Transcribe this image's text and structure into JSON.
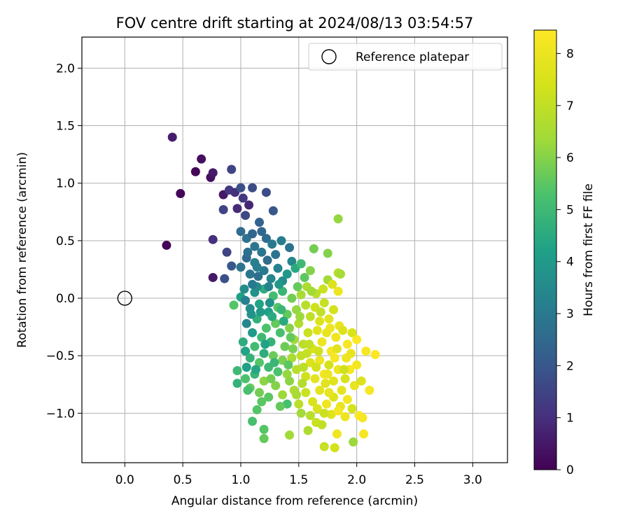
{
  "chart_data": {
    "type": "scatter",
    "title": "FOV centre drift starting at 2024/08/13 03:54:57",
    "xlabel": "Angular distance from reference (arcmin)",
    "ylabel": "Rotation from reference (arcmin)",
    "xlim": [
      -0.37,
      3.3
    ],
    "ylim": [
      -1.43,
      2.27
    ],
    "xticks": [
      {
        "value": 0.0,
        "label": "0.0"
      },
      {
        "value": 0.5,
        "label": "0.5"
      },
      {
        "value": 1.0,
        "label": "1.0"
      },
      {
        "value": 1.5,
        "label": "1.5"
      },
      {
        "value": 2.0,
        "label": "2.0"
      },
      {
        "value": 2.5,
        "label": "2.5"
      },
      {
        "value": 3.0,
        "label": "3.0"
      }
    ],
    "yticks": [
      {
        "value": -1.0,
        "label": "−1.0"
      },
      {
        "value": -0.5,
        "label": "−0.5"
      },
      {
        "value": 0.0,
        "label": "0.0"
      },
      {
        "value": 0.5,
        "label": "0.5"
      },
      {
        "value": 1.0,
        "label": "1.0"
      },
      {
        "value": 1.5,
        "label": "1.5"
      },
      {
        "value": 2.0,
        "label": "2.0"
      }
    ],
    "grid": true,
    "legend": {
      "position": "top-right",
      "entries": [
        {
          "label": "Reference platepar",
          "marker": "open-circle",
          "color": "#000000"
        }
      ]
    },
    "reference_point": {
      "x": 0.0,
      "y": 0.0
    },
    "colorbar": {
      "label": "Hours from first FF file",
      "colormap": "viridis",
      "range": [
        0,
        8.45
      ],
      "ticks": [
        {
          "value": 0,
          "label": "0"
        },
        {
          "value": 1,
          "label": "1"
        },
        {
          "value": 2,
          "label": "2"
        },
        {
          "value": 3,
          "label": "3"
        },
        {
          "value": 4,
          "label": "4"
        },
        {
          "value": 5,
          "label": "5"
        },
        {
          "value": 6,
          "label": "6"
        },
        {
          "value": 7,
          "label": "7"
        },
        {
          "value": 8,
          "label": "8"
        }
      ]
    },
    "points": [
      {
        "x": 0.41,
        "y": 1.4,
        "h": 0.6
      },
      {
        "x": 0.36,
        "y": 0.46,
        "h": 0.1
      },
      {
        "x": 0.48,
        "y": 0.91,
        "h": 0.1
      },
      {
        "x": 0.61,
        "y": 1.1,
        "h": 0.1
      },
      {
        "x": 0.66,
        "y": 1.21,
        "h": 0.3
      },
      {
        "x": 0.74,
        "y": 1.05,
        "h": 0.3
      },
      {
        "x": 0.76,
        "y": 1.09,
        "h": 0.5
      },
      {
        "x": 0.76,
        "y": 0.51,
        "h": 1.0
      },
      {
        "x": 0.76,
        "y": 0.18,
        "h": 0.5
      },
      {
        "x": 0.85,
        "y": 0.9,
        "h": 0.5
      },
      {
        "x": 0.85,
        "y": 0.77,
        "h": 1.5
      },
      {
        "x": 0.88,
        "y": 0.4,
        "h": 1.5
      },
      {
        "x": 0.86,
        "y": 0.17,
        "h": 1.8
      },
      {
        "x": 0.9,
        "y": 0.94,
        "h": 1.2
      },
      {
        "x": 0.92,
        "y": 1.12,
        "h": 1.5
      },
      {
        "x": 0.95,
        "y": 0.92,
        "h": 1.0
      },
      {
        "x": 0.92,
        "y": 0.28,
        "h": 2.0
      },
      {
        "x": 0.97,
        "y": 0.78,
        "h": 0.9
      },
      {
        "x": 1.0,
        "y": 0.96,
        "h": 1.8
      },
      {
        "x": 1.02,
        "y": 0.87,
        "h": 1.2
      },
      {
        "x": 1.04,
        "y": 0.72,
        "h": 1.6
      },
      {
        "x": 1.07,
        "y": 0.81,
        "h": 0.8
      },
      {
        "x": 1.1,
        "y": 0.96,
        "h": 1.7
      },
      {
        "x": 1.22,
        "y": 0.92,
        "h": 1.7
      },
      {
        "x": 1.28,
        "y": 0.76,
        "h": 2.0
      },
      {
        "x": 1.16,
        "y": 0.66,
        "h": 2.3
      },
      {
        "x": 1.0,
        "y": 0.58,
        "h": 2.6
      },
      {
        "x": 1.05,
        "y": 0.52,
        "h": 2.8
      },
      {
        "x": 1.1,
        "y": 0.56,
        "h": 2.4
      },
      {
        "x": 1.12,
        "y": 0.45,
        "h": 2.9
      },
      {
        "x": 1.18,
        "y": 0.58,
        "h": 2.4
      },
      {
        "x": 1.22,
        "y": 0.52,
        "h": 2.6
      },
      {
        "x": 1.27,
        "y": 0.47,
        "h": 3.0
      },
      {
        "x": 1.3,
        "y": 0.38,
        "h": 2.8
      },
      {
        "x": 1.35,
        "y": 0.5,
        "h": 3.1
      },
      {
        "x": 1.42,
        "y": 0.44,
        "h": 2.8
      },
      {
        "x": 1.44,
        "y": 0.32,
        "h": 3.4
      },
      {
        "x": 1.0,
        "y": 0.27,
        "h": 2.8
      },
      {
        "x": 1.05,
        "y": 0.35,
        "h": 2.5
      },
      {
        "x": 1.08,
        "y": 0.21,
        "h": 2.9
      },
      {
        "x": 1.12,
        "y": 0.31,
        "h": 3.2
      },
      {
        "x": 1.15,
        "y": 0.19,
        "h": 2.7
      },
      {
        "x": 1.2,
        "y": 0.24,
        "h": 3.0
      },
      {
        "x": 1.23,
        "y": 0.33,
        "h": 2.6
      },
      {
        "x": 1.26,
        "y": 0.17,
        "h": 3.4
      },
      {
        "x": 1.32,
        "y": 0.26,
        "h": 3.3
      },
      {
        "x": 1.36,
        "y": 0.15,
        "h": 3.6
      },
      {
        "x": 1.4,
        "y": 0.21,
        "h": 3.9
      },
      {
        "x": 1.47,
        "y": 0.26,
        "h": 4.5
      },
      {
        "x": 1.52,
        "y": 0.3,
        "h": 5.0
      },
      {
        "x": 1.55,
        "y": 0.18,
        "h": 5.5
      },
      {
        "x": 1.6,
        "y": 0.24,
        "h": 6.0
      },
      {
        "x": 1.63,
        "y": 0.43,
        "h": 5.8
      },
      {
        "x": 1.75,
        "y": 0.39,
        "h": 6.0
      },
      {
        "x": 1.75,
        "y": 0.16,
        "h": 6.4
      },
      {
        "x": 1.84,
        "y": 0.69,
        "h": 6.2
      },
      {
        "x": 1.84,
        "y": 0.22,
        "h": 6.8
      },
      {
        "x": 1.86,
        "y": 0.21,
        "h": 6.5
      },
      {
        "x": 1.84,
        "y": 0.06,
        "h": 8.0
      },
      {
        "x": 1.79,
        "y": 0.12,
        "h": 7.6
      },
      {
        "x": 1.71,
        "y": 0.08,
        "h": 7.2
      },
      {
        "x": 1.65,
        "y": 0.04,
        "h": 6.9
      },
      {
        "x": 1.57,
        "y": 0.1,
        "h": 6.6
      },
      {
        "x": 0.94,
        "y": -0.06,
        "h": 5.4
      },
      {
        "x": 1.0,
        "y": 0.01,
        "h": 4.2
      },
      {
        "x": 1.04,
        "y": -0.02,
        "h": 3.2
      },
      {
        "x": 1.08,
        "y": -0.09,
        "h": 3.6
      },
      {
        "x": 1.12,
        "y": 0.05,
        "h": 3.8
      },
      {
        "x": 1.16,
        "y": -0.05,
        "h": 4.3
      },
      {
        "x": 1.2,
        "y": 0.08,
        "h": 4.6
      },
      {
        "x": 1.24,
        "y": -0.12,
        "h": 4.2
      },
      {
        "x": 1.28,
        "y": 0.02,
        "h": 5.1
      },
      {
        "x": 1.32,
        "y": -0.08,
        "h": 5.4
      },
      {
        "x": 1.36,
        "y": 0.06,
        "h": 4.9
      },
      {
        "x": 1.4,
        "y": -0.14,
        "h": 5.6
      },
      {
        "x": 1.44,
        "y": 0.0,
        "h": 5.8
      },
      {
        "x": 1.48,
        "y": -0.1,
        "h": 6.2
      },
      {
        "x": 1.52,
        "y": 0.03,
        "h": 6.5
      },
      {
        "x": 1.56,
        "y": -0.06,
        "h": 6.8
      },
      {
        "x": 1.6,
        "y": -0.16,
        "h": 7.0
      },
      {
        "x": 1.64,
        "y": -0.08,
        "h": 7.3
      },
      {
        "x": 1.68,
        "y": -0.2,
        "h": 7.6
      },
      {
        "x": 1.72,
        "y": -0.04,
        "h": 7.1
      },
      {
        "x": 1.76,
        "y": -0.18,
        "h": 7.8
      },
      {
        "x": 1.8,
        "y": -0.1,
        "h": 7.4
      },
      {
        "x": 1.85,
        "y": -0.24,
        "h": 7.9
      },
      {
        "x": 1.05,
        "y": -0.22,
        "h": 3.4
      },
      {
        "x": 1.1,
        "y": -0.3,
        "h": 4.0
      },
      {
        "x": 1.14,
        "y": -0.18,
        "h": 4.7
      },
      {
        "x": 1.18,
        "y": -0.34,
        "h": 5.0
      },
      {
        "x": 1.22,
        "y": -0.26,
        "h": 5.3
      },
      {
        "x": 1.26,
        "y": -0.38,
        "h": 4.8
      },
      {
        "x": 1.3,
        "y": -0.22,
        "h": 5.6
      },
      {
        "x": 1.34,
        "y": -0.3,
        "h": 5.2
      },
      {
        "x": 1.38,
        "y": -0.42,
        "h": 5.7
      },
      {
        "x": 1.42,
        "y": -0.26,
        "h": 6.0
      },
      {
        "x": 1.46,
        "y": -0.36,
        "h": 6.4
      },
      {
        "x": 1.5,
        "y": -0.22,
        "h": 6.7
      },
      {
        "x": 1.54,
        "y": -0.4,
        "h": 6.9
      },
      {
        "x": 1.58,
        "y": -0.3,
        "h": 7.2
      },
      {
        "x": 1.62,
        "y": -0.44,
        "h": 7.5
      },
      {
        "x": 1.66,
        "y": -0.28,
        "h": 7.7
      },
      {
        "x": 1.7,
        "y": -0.38,
        "h": 8.0
      },
      {
        "x": 1.74,
        "y": -0.3,
        "h": 7.9
      },
      {
        "x": 1.78,
        "y": -0.46,
        "h": 8.2
      },
      {
        "x": 1.82,
        "y": -0.34,
        "h": 8.1
      },
      {
        "x": 1.88,
        "y": -0.28,
        "h": 7.6
      },
      {
        "x": 1.92,
        "y": -0.4,
        "h": 8.3
      },
      {
        "x": 1.96,
        "y": -0.3,
        "h": 7.5
      },
      {
        "x": 2.0,
        "y": -0.36,
        "h": 8.4
      },
      {
        "x": 2.08,
        "y": -0.46,
        "h": 8.3
      },
      {
        "x": 2.16,
        "y": -0.49,
        "h": 8.4
      },
      {
        "x": 2.0,
        "y": -0.58,
        "h": 8.2
      },
      {
        "x": 1.04,
        "y": -0.46,
        "h": 4.3
      },
      {
        "x": 1.08,
        "y": -0.52,
        "h": 4.8
      },
      {
        "x": 1.12,
        "y": -0.42,
        "h": 5.1
      },
      {
        "x": 1.16,
        "y": -0.56,
        "h": 5.4
      },
      {
        "x": 1.2,
        "y": -0.48,
        "h": 4.6
      },
      {
        "x": 1.24,
        "y": -0.6,
        "h": 5.0
      },
      {
        "x": 1.28,
        "y": -0.5,
        "h": 5.7
      },
      {
        "x": 1.32,
        "y": -0.64,
        "h": 5.3
      },
      {
        "x": 1.36,
        "y": -0.54,
        "h": 5.9
      },
      {
        "x": 1.4,
        "y": -0.66,
        "h": 6.2
      },
      {
        "x": 1.44,
        "y": -0.52,
        "h": 6.5
      },
      {
        "x": 1.48,
        "y": -0.62,
        "h": 6.8
      },
      {
        "x": 1.52,
        "y": -0.5,
        "h": 7.0
      },
      {
        "x": 1.56,
        "y": -0.68,
        "h": 7.3
      },
      {
        "x": 1.6,
        "y": -0.56,
        "h": 7.6
      },
      {
        "x": 1.64,
        "y": -0.7,
        "h": 7.8
      },
      {
        "x": 1.68,
        "y": -0.54,
        "h": 8.0
      },
      {
        "x": 1.72,
        "y": -0.66,
        "h": 8.2
      },
      {
        "x": 1.76,
        "y": -0.58,
        "h": 7.4
      },
      {
        "x": 1.8,
        "y": -0.72,
        "h": 7.7
      },
      {
        "x": 1.84,
        "y": -0.62,
        "h": 8.1
      },
      {
        "x": 1.9,
        "y": -0.7,
        "h": 7.5
      },
      {
        "x": 1.94,
        "y": -0.62,
        "h": 8.3
      },
      {
        "x": 1.98,
        "y": -0.76,
        "h": 7.9
      },
      {
        "x": 2.04,
        "y": -0.72,
        "h": 7.6
      },
      {
        "x": 2.11,
        "y": -0.8,
        "h": 8.3
      },
      {
        "x": 0.97,
        "y": -0.63,
        "h": 5.0
      },
      {
        "x": 0.97,
        "y": -0.74,
        "h": 4.8
      },
      {
        "x": 1.04,
        "y": -0.7,
        "h": 5.3
      },
      {
        "x": 1.08,
        "y": -0.78,
        "h": 5.6
      },
      {
        "x": 1.12,
        "y": -0.66,
        "h": 4.9
      },
      {
        "x": 1.16,
        "y": -0.82,
        "h": 5.8
      },
      {
        "x": 1.2,
        "y": -0.72,
        "h": 6.1
      },
      {
        "x": 1.24,
        "y": -0.86,
        "h": 5.5
      },
      {
        "x": 1.3,
        "y": -0.76,
        "h": 6.0
      },
      {
        "x": 1.36,
        "y": -0.84,
        "h": 6.3
      },
      {
        "x": 1.4,
        "y": -0.92,
        "h": 5.2
      },
      {
        "x": 1.46,
        "y": -0.8,
        "h": 6.6
      },
      {
        "x": 1.5,
        "y": -0.92,
        "h": 6.9
      },
      {
        "x": 1.56,
        "y": -0.82,
        "h": 7.2
      },
      {
        "x": 1.62,
        "y": -0.9,
        "h": 7.5
      },
      {
        "x": 1.68,
        "y": -0.8,
        "h": 7.8
      },
      {
        "x": 1.74,
        "y": -0.92,
        "h": 8.1
      },
      {
        "x": 1.8,
        "y": -0.86,
        "h": 7.6
      },
      {
        "x": 1.86,
        "y": -0.94,
        "h": 7.9
      },
      {
        "x": 1.92,
        "y": -0.88,
        "h": 8.2
      },
      {
        "x": 1.96,
        "y": -0.96,
        "h": 7.4
      },
      {
        "x": 2.02,
        "y": -1.02,
        "h": 8.4
      },
      {
        "x": 2.05,
        "y": -1.04,
        "h": 8.3
      },
      {
        "x": 1.9,
        "y": -1.03,
        "h": 8.0
      },
      {
        "x": 1.78,
        "y": -1.01,
        "h": 7.7
      },
      {
        "x": 1.65,
        "y": -1.08,
        "h": 7.2
      },
      {
        "x": 1.7,
        "y": -1.1,
        "h": 7.0
      },
      {
        "x": 1.6,
        "y": -1.02,
        "h": 6.8
      },
      {
        "x": 1.52,
        "y": -1.0,
        "h": 6.4
      },
      {
        "x": 1.14,
        "y": -0.97,
        "h": 5.4
      },
      {
        "x": 1.1,
        "y": -1.07,
        "h": 5.2
      },
      {
        "x": 1.2,
        "y": -1.14,
        "h": 5.4
      },
      {
        "x": 1.2,
        "y": -1.22,
        "h": 5.6
      },
      {
        "x": 1.42,
        "y": -1.19,
        "h": 6.4
      },
      {
        "x": 1.58,
        "y": -1.15,
        "h": 6.6
      },
      {
        "x": 1.72,
        "y": -1.29,
        "h": 7.1
      },
      {
        "x": 1.81,
        "y": -1.3,
        "h": 7.4
      },
      {
        "x": 1.83,
        "y": -1.18,
        "h": 8.1
      },
      {
        "x": 1.97,
        "y": -1.25,
        "h": 6.3
      },
      {
        "x": 2.06,
        "y": -1.18,
        "h": 8.3
      },
      {
        "x": 1.02,
        "y": -0.38,
        "h": 4.6
      },
      {
        "x": 1.05,
        "y": -0.6,
        "h": 4.2
      },
      {
        "x": 1.09,
        "y": -0.14,
        "h": 3.8
      },
      {
        "x": 1.13,
        "y": -0.62,
        "h": 4.4
      },
      {
        "x": 1.17,
        "y": -0.12,
        "h": 4.0
      },
      {
        "x": 1.21,
        "y": -0.4,
        "h": 4.3
      },
      {
        "x": 1.25,
        "y": -0.04,
        "h": 3.7
      },
      {
        "x": 1.29,
        "y": -0.56,
        "h": 4.9
      },
      {
        "x": 1.33,
        "y": 0.12,
        "h": 3.9
      },
      {
        "x": 1.37,
        "y": -0.2,
        "h": 4.5
      },
      {
        "x": 1.41,
        "y": -0.58,
        "h": 5.5
      },
      {
        "x": 1.45,
        "y": -0.44,
        "h": 5.9
      },
      {
        "x": 1.49,
        "y": 0.1,
        "h": 5.6
      },
      {
        "x": 1.53,
        "y": -0.74,
        "h": 6.7
      },
      {
        "x": 1.57,
        "y": -0.48,
        "h": 7.1
      },
      {
        "x": 1.61,
        "y": 0.06,
        "h": 6.4
      },
      {
        "x": 1.65,
        "y": -0.6,
        "h": 7.4
      },
      {
        "x": 1.69,
        "y": -0.12,
        "h": 7.0
      },
      {
        "x": 1.73,
        "y": -0.74,
        "h": 7.7
      },
      {
        "x": 1.77,
        "y": -0.26,
        "h": 8.0
      },
      {
        "x": 1.81,
        "y": -0.52,
        "h": 8.3
      },
      {
        "x": 1.87,
        "y": -0.8,
        "h": 7.8
      },
      {
        "x": 1.91,
        "y": -0.52,
        "h": 8.0
      },
      {
        "x": 1.14,
        "y": 0.1,
        "h": 3.5
      },
      {
        "x": 1.18,
        "y": 0.4,
        "h": 2.9
      },
      {
        "x": 1.1,
        "y": 0.12,
        "h": 3.0
      },
      {
        "x": 1.24,
        "y": 0.1,
        "h": 3.3
      },
      {
        "x": 1.06,
        "y": 0.4,
        "h": 2.7
      },
      {
        "x": 1.14,
        "y": 0.27,
        "h": 3.1
      },
      {
        "x": 1.03,
        "y": 0.08,
        "h": 3.6
      },
      {
        "x": 1.27,
        "y": -0.16,
        "h": 4.5
      },
      {
        "x": 1.35,
        "y": -0.1,
        "h": 4.9
      },
      {
        "x": 1.43,
        "y": -0.34,
        "h": 5.6
      },
      {
        "x": 1.51,
        "y": -0.16,
        "h": 6.3
      },
      {
        "x": 1.59,
        "y": -0.4,
        "h": 7.0
      },
      {
        "x": 1.67,
        "y": -0.46,
        "h": 7.3
      },
      {
        "x": 1.75,
        "y": -0.66,
        "h": 8.0
      },
      {
        "x": 1.83,
        "y": -0.44,
        "h": 7.7
      },
      {
        "x": 1.89,
        "y": -0.62,
        "h": 7.3
      },
      {
        "x": 1.95,
        "y": -0.48,
        "h": 7.9
      },
      {
        "x": 1.06,
        "y": -0.8,
        "h": 5.2
      },
      {
        "x": 1.18,
        "y": -0.9,
        "h": 5.5
      },
      {
        "x": 1.26,
        "y": -0.7,
        "h": 5.8
      },
      {
        "x": 1.34,
        "y": -0.94,
        "h": 5.6
      },
      {
        "x": 1.42,
        "y": -0.72,
        "h": 6.1
      },
      {
        "x": 1.48,
        "y": -0.84,
        "h": 6.5
      },
      {
        "x": 1.54,
        "y": -0.6,
        "h": 6.9
      },
      {
        "x": 1.66,
        "y": -0.96,
        "h": 7.5
      },
      {
        "x": 1.72,
        "y": -1.0,
        "h": 7.2
      },
      {
        "x": 1.76,
        "y": -0.82,
        "h": 7.9
      },
      {
        "x": 1.84,
        "y": -0.98,
        "h": 8.2
      }
    ]
  }
}
